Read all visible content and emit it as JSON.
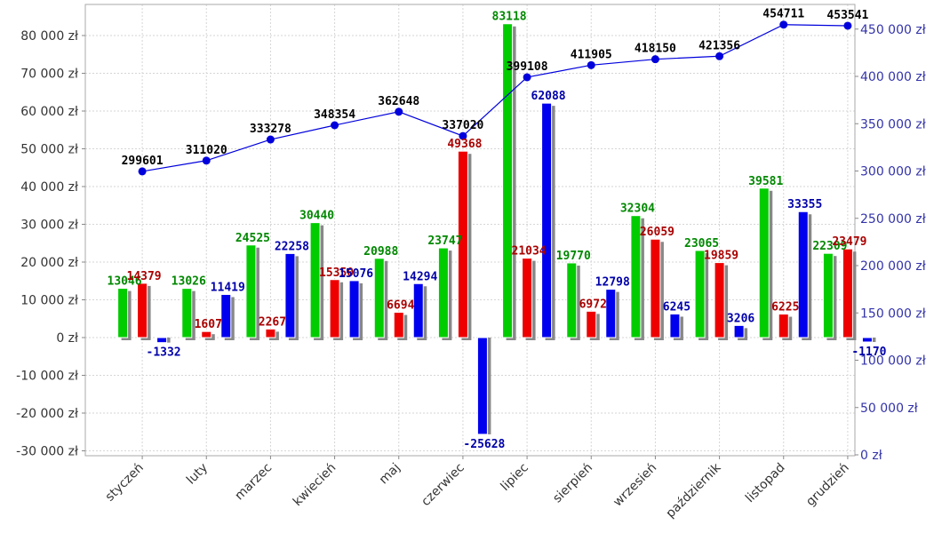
{
  "chart_data": {
    "type": "bar",
    "categories": [
      "styczeń",
      "luty",
      "marzec",
      "kwiecień",
      "maj",
      "czerwiec",
      "lipiec",
      "sierpień",
      "wrzesień",
      "październik",
      "listopad",
      "grudzień"
    ],
    "series": [
      {
        "color": "#00cc00",
        "label_color": "#008800",
        "axis": "left",
        "values": [
          13046,
          13026,
          24525,
          30440,
          20988,
          23747,
          83118,
          19770,
          32304,
          23065,
          39581,
          22309
        ]
      },
      {
        "color": "#ee0000",
        "label_color": "#aa0000",
        "axis": "left",
        "values": [
          14379,
          1607,
          2267,
          15350,
          6694,
          49368,
          21034,
          6972,
          26059,
          19859,
          6225,
          23479
        ]
      },
      {
        "color": "#0000ee",
        "label_color": "#0000aa",
        "axis": "left",
        "values": [
          -1332,
          11419,
          22258,
          15076,
          14294,
          -25628,
          62088,
          12798,
          6245,
          3206,
          33355,
          -1170
        ]
      },
      {
        "type": "line",
        "color": "#0000dd",
        "label_color": "#000000",
        "axis": "right",
        "values": [
          299601,
          311020,
          333278,
          348354,
          362648,
          337020,
          399108,
          411905,
          418150,
          421356,
          454711,
          453541
        ]
      }
    ],
    "y_left": {
      "min": -30000,
      "max": 80000,
      "step": 10000,
      "suffix": " zł"
    },
    "y_right": {
      "min": 0,
      "max": 450000,
      "step": 50000,
      "suffix": " zł"
    },
    "title": "",
    "xlabel": "",
    "ylabel": "",
    "grid": true,
    "legend": "none"
  }
}
